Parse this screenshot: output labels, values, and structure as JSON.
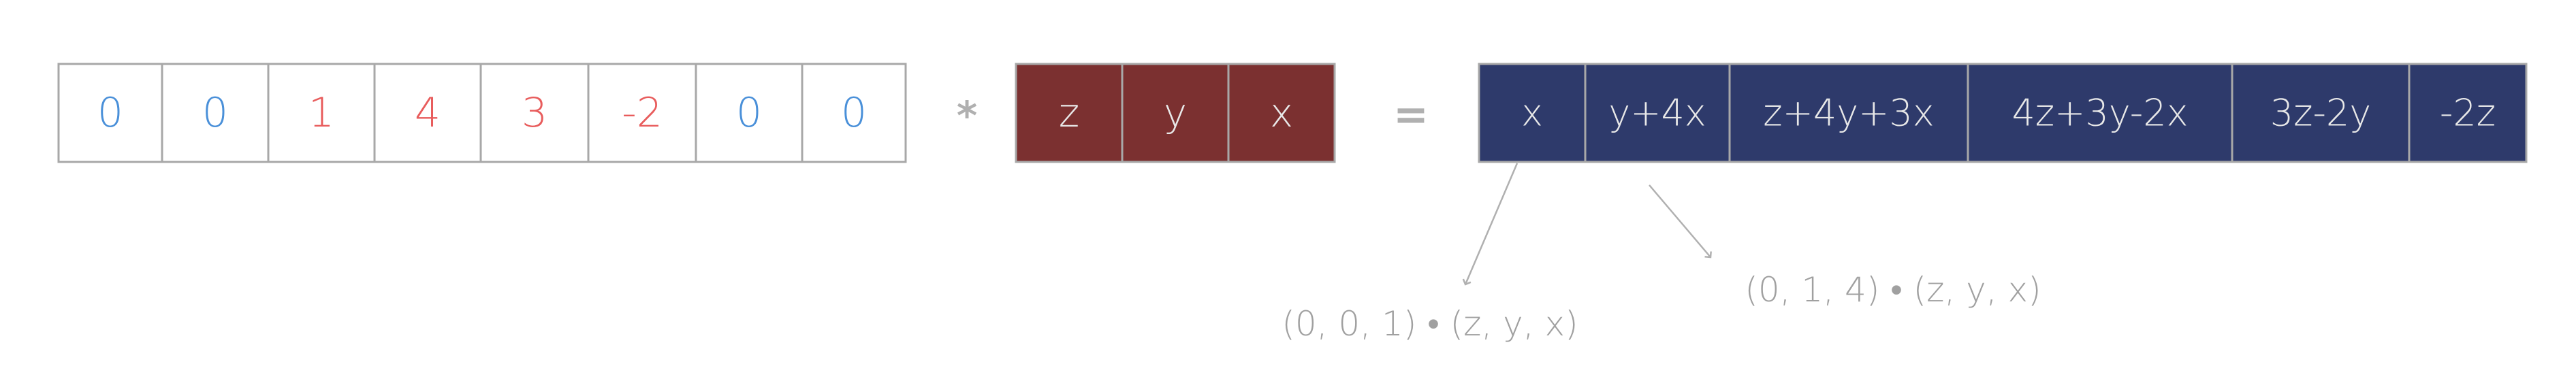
{
  "input_sequence": {
    "cells": [
      {
        "label": "0",
        "kind": "pad"
      },
      {
        "label": "0",
        "kind": "pad"
      },
      {
        "label": "1",
        "kind": "value"
      },
      {
        "label": "4",
        "kind": "value"
      },
      {
        "label": "3",
        "kind": "value"
      },
      {
        "label": "-2",
        "kind": "value"
      },
      {
        "label": "0",
        "kind": "pad"
      },
      {
        "label": "0",
        "kind": "pad"
      }
    ]
  },
  "operator_convolve": "*",
  "kernel": {
    "cells": [
      "z",
      "y",
      "x"
    ]
  },
  "operator_equals": "=",
  "output_sequence": {
    "cells": [
      "x",
      "y+4x",
      "z+4y+3x",
      "4z+3y-2x",
      "3z-2y",
      "-2z"
    ]
  },
  "annotations": [
    {
      "text": "(0, 0, 1) • (z, y, x)"
    },
    {
      "text": "(0, 1, 4) • (z, y, x)"
    }
  ],
  "colors": {
    "pad": "#4a90d9",
    "value": "#e85c5c",
    "kernel_fill": "#7b3030",
    "output_fill": "#2e3a6b",
    "cell_border": "#a8a8a8",
    "light_text": "#e8e8e8",
    "operator": "#b0b0b0",
    "note": "#a0a0a0"
  }
}
